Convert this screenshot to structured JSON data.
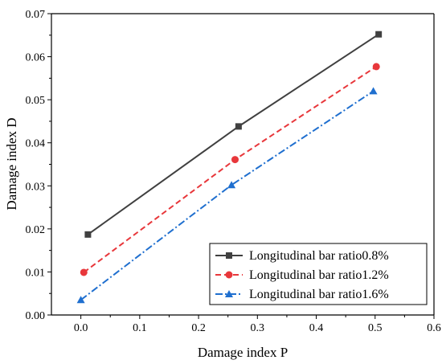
{
  "chart_data": {
    "type": "line",
    "xlabel": "Damage index P",
    "ylabel": "Damage index D",
    "xlim": [
      -0.05,
      0.6
    ],
    "ylim": [
      0,
      0.07
    ],
    "xticks": [
      "0.0",
      "0.1",
      "0.2",
      "0.3",
      "0.4",
      "0.5",
      "0.6"
    ],
    "yticks": [
      "0.00",
      "0.01",
      "0.02",
      "0.03",
      "0.04",
      "0.05",
      "0.06",
      "0.07"
    ],
    "grid": false,
    "legend_position": "bottom-right",
    "series": [
      {
        "name": "Longitudinal bar ratio0.8%",
        "color": "#404040",
        "line_style": "solid",
        "marker": "square",
        "x": [
          0.012,
          0.268,
          0.506
        ],
        "y": [
          0.0187,
          0.0438,
          0.0652
        ]
      },
      {
        "name": "Longitudinal bar ratio1.2%",
        "color": "#e8373b",
        "line_style": "dashed",
        "marker": "circle",
        "x": [
          0.005,
          0.262,
          0.502
        ],
        "y": [
          0.0099,
          0.0361,
          0.0577
        ]
      },
      {
        "name": "Longitudinal bar ratio1.6%",
        "color": "#1f6fcf",
        "line_style": "dash-dot",
        "marker": "triangle",
        "x": [
          0.0,
          0.256,
          0.497
        ],
        "y": [
          0.0035,
          0.0302,
          0.052
        ]
      }
    ]
  }
}
